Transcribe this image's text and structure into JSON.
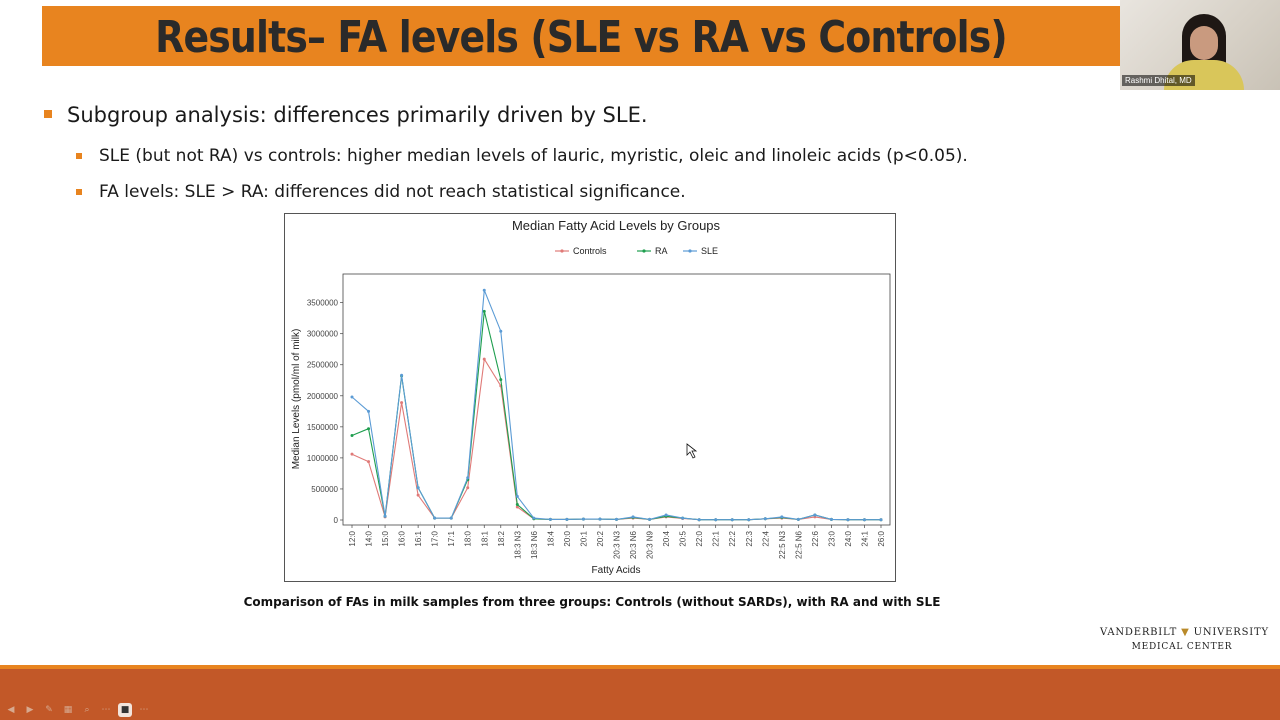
{
  "slide": {
    "title": "Results– FA levels (SLE vs RA vs Controls)",
    "bullet_main": "Subgroup analysis: differences primarily driven by SLE.",
    "sub_bullets": [
      "SLE (but not RA) vs controls: higher median levels of lauric, myristic, oleic and linoleic acids (p<0.05).",
      "FA levels: SLE > RA: differences did not reach statistical significance."
    ],
    "caption": "Comparison of FAs in milk samples from three groups: Controls (without SARDs), with RA and with SLE",
    "logo_left": "VANDERBILT",
    "logo_right": "UNIVERSITY",
    "logo_line2": "MEDICAL CENTER"
  },
  "video": {
    "participant_name": "Rashmi Dhital, MD"
  },
  "presenter_controls": [
    "prev-icon",
    "next-icon",
    "pen-icon",
    "slides-icon",
    "zoom-icon",
    "more-icon",
    "camera-icon",
    "options-icon"
  ],
  "colors": {
    "accent": "#e8841f",
    "bottom_bar": "#c25828",
    "controls": "#e07a78",
    "ra": "#1e9e4e",
    "sle": "#5b9bd5"
  },
  "chart_data": {
    "type": "line",
    "title": "Median Fatty Acid Levels by Groups",
    "xlabel": "Fatty Acids",
    "ylabel": "Median Levels (pmol/ml of milk)",
    "ylim": [
      0,
      3800000
    ],
    "yticks": [
      0,
      500000,
      1000000,
      1500000,
      2000000,
      2500000,
      3000000,
      3500000
    ],
    "legend_position": "top",
    "grid": false,
    "categories": [
      "12:0",
      "14:0",
      "15:0",
      "16:0",
      "16:1",
      "17:0",
      "17:1",
      "18:0",
      "18:1",
      "18:2",
      "18:3 N3",
      "18:3 N6",
      "18:4",
      "20:0",
      "20:1",
      "20:2",
      "20:3 N3",
      "20:3 N6",
      "20:3 N9",
      "20:4",
      "20:5",
      "22:0",
      "22:1",
      "22:2",
      "22:3",
      "22:4",
      "22:5 N3",
      "22:5 N6",
      "22:6",
      "23:0",
      "24:0",
      "24:1",
      "26:0"
    ],
    "series": [
      {
        "name": "Controls",
        "color": "#e07a78",
        "values": [
          1060000,
          940000,
          50000,
          1890000,
          400000,
          30000,
          30000,
          520000,
          2590000,
          2160000,
          210000,
          20000,
          10000,
          10000,
          15000,
          15000,
          10000,
          30000,
          10000,
          50000,
          25000,
          5000,
          5000,
          5000,
          5000,
          20000,
          30000,
          10000,
          50000,
          10000,
          5000,
          5000,
          5000
        ]
      },
      {
        "name": "RA",
        "color": "#1e9e4e",
        "values": [
          1360000,
          1470000,
          60000,
          2320000,
          520000,
          30000,
          30000,
          650000,
          3360000,
          2260000,
          250000,
          20000,
          10000,
          10000,
          15000,
          15000,
          10000,
          40000,
          10000,
          60000,
          30000,
          5000,
          5000,
          5000,
          5000,
          20000,
          40000,
          10000,
          80000,
          10000,
          5000,
          5000,
          5000
        ]
      },
      {
        "name": "SLE",
        "color": "#5b9bd5",
        "values": [
          1980000,
          1750000,
          60000,
          2330000,
          520000,
          30000,
          30000,
          680000,
          3700000,
          3040000,
          380000,
          30000,
          10000,
          10000,
          15000,
          15000,
          10000,
          50000,
          10000,
          80000,
          30000,
          5000,
          5000,
          5000,
          5000,
          20000,
          50000,
          10000,
          80000,
          10000,
          5000,
          5000,
          5000
        ]
      }
    ]
  }
}
